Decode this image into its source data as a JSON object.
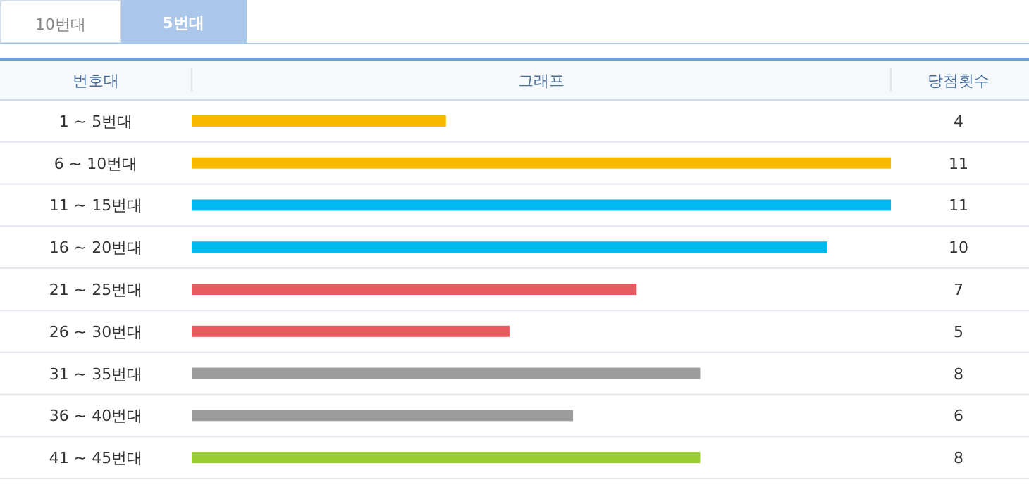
{
  "chart_data": {
    "type": "bar",
    "orientation": "horizontal",
    "ylabel": "번호대",
    "xlabel": "그래프",
    "annotations": [
      "10번대",
      "5번대",
      "당첨횟수"
    ],
    "categories": [
      "1 ~ 5번대",
      "6 ~ 10번대",
      "11 ~ 15번대",
      "16 ~ 20번대",
      "21 ~ 25번대",
      "26 ~ 30번대",
      "31 ~ 35번대",
      "36 ~ 40번대",
      "41 ~ 45번대"
    ],
    "values": [
      4,
      11,
      11,
      10,
      7,
      5,
      8,
      6,
      8
    ],
    "colors": [
      "#f9b800",
      "#f9b800",
      "#00b9f1",
      "#00b9f1",
      "#e85a5f",
      "#e85a5f",
      "#9c9c9c",
      "#9c9c9c",
      "#9acd32"
    ],
    "data_labels": true
  }
}
